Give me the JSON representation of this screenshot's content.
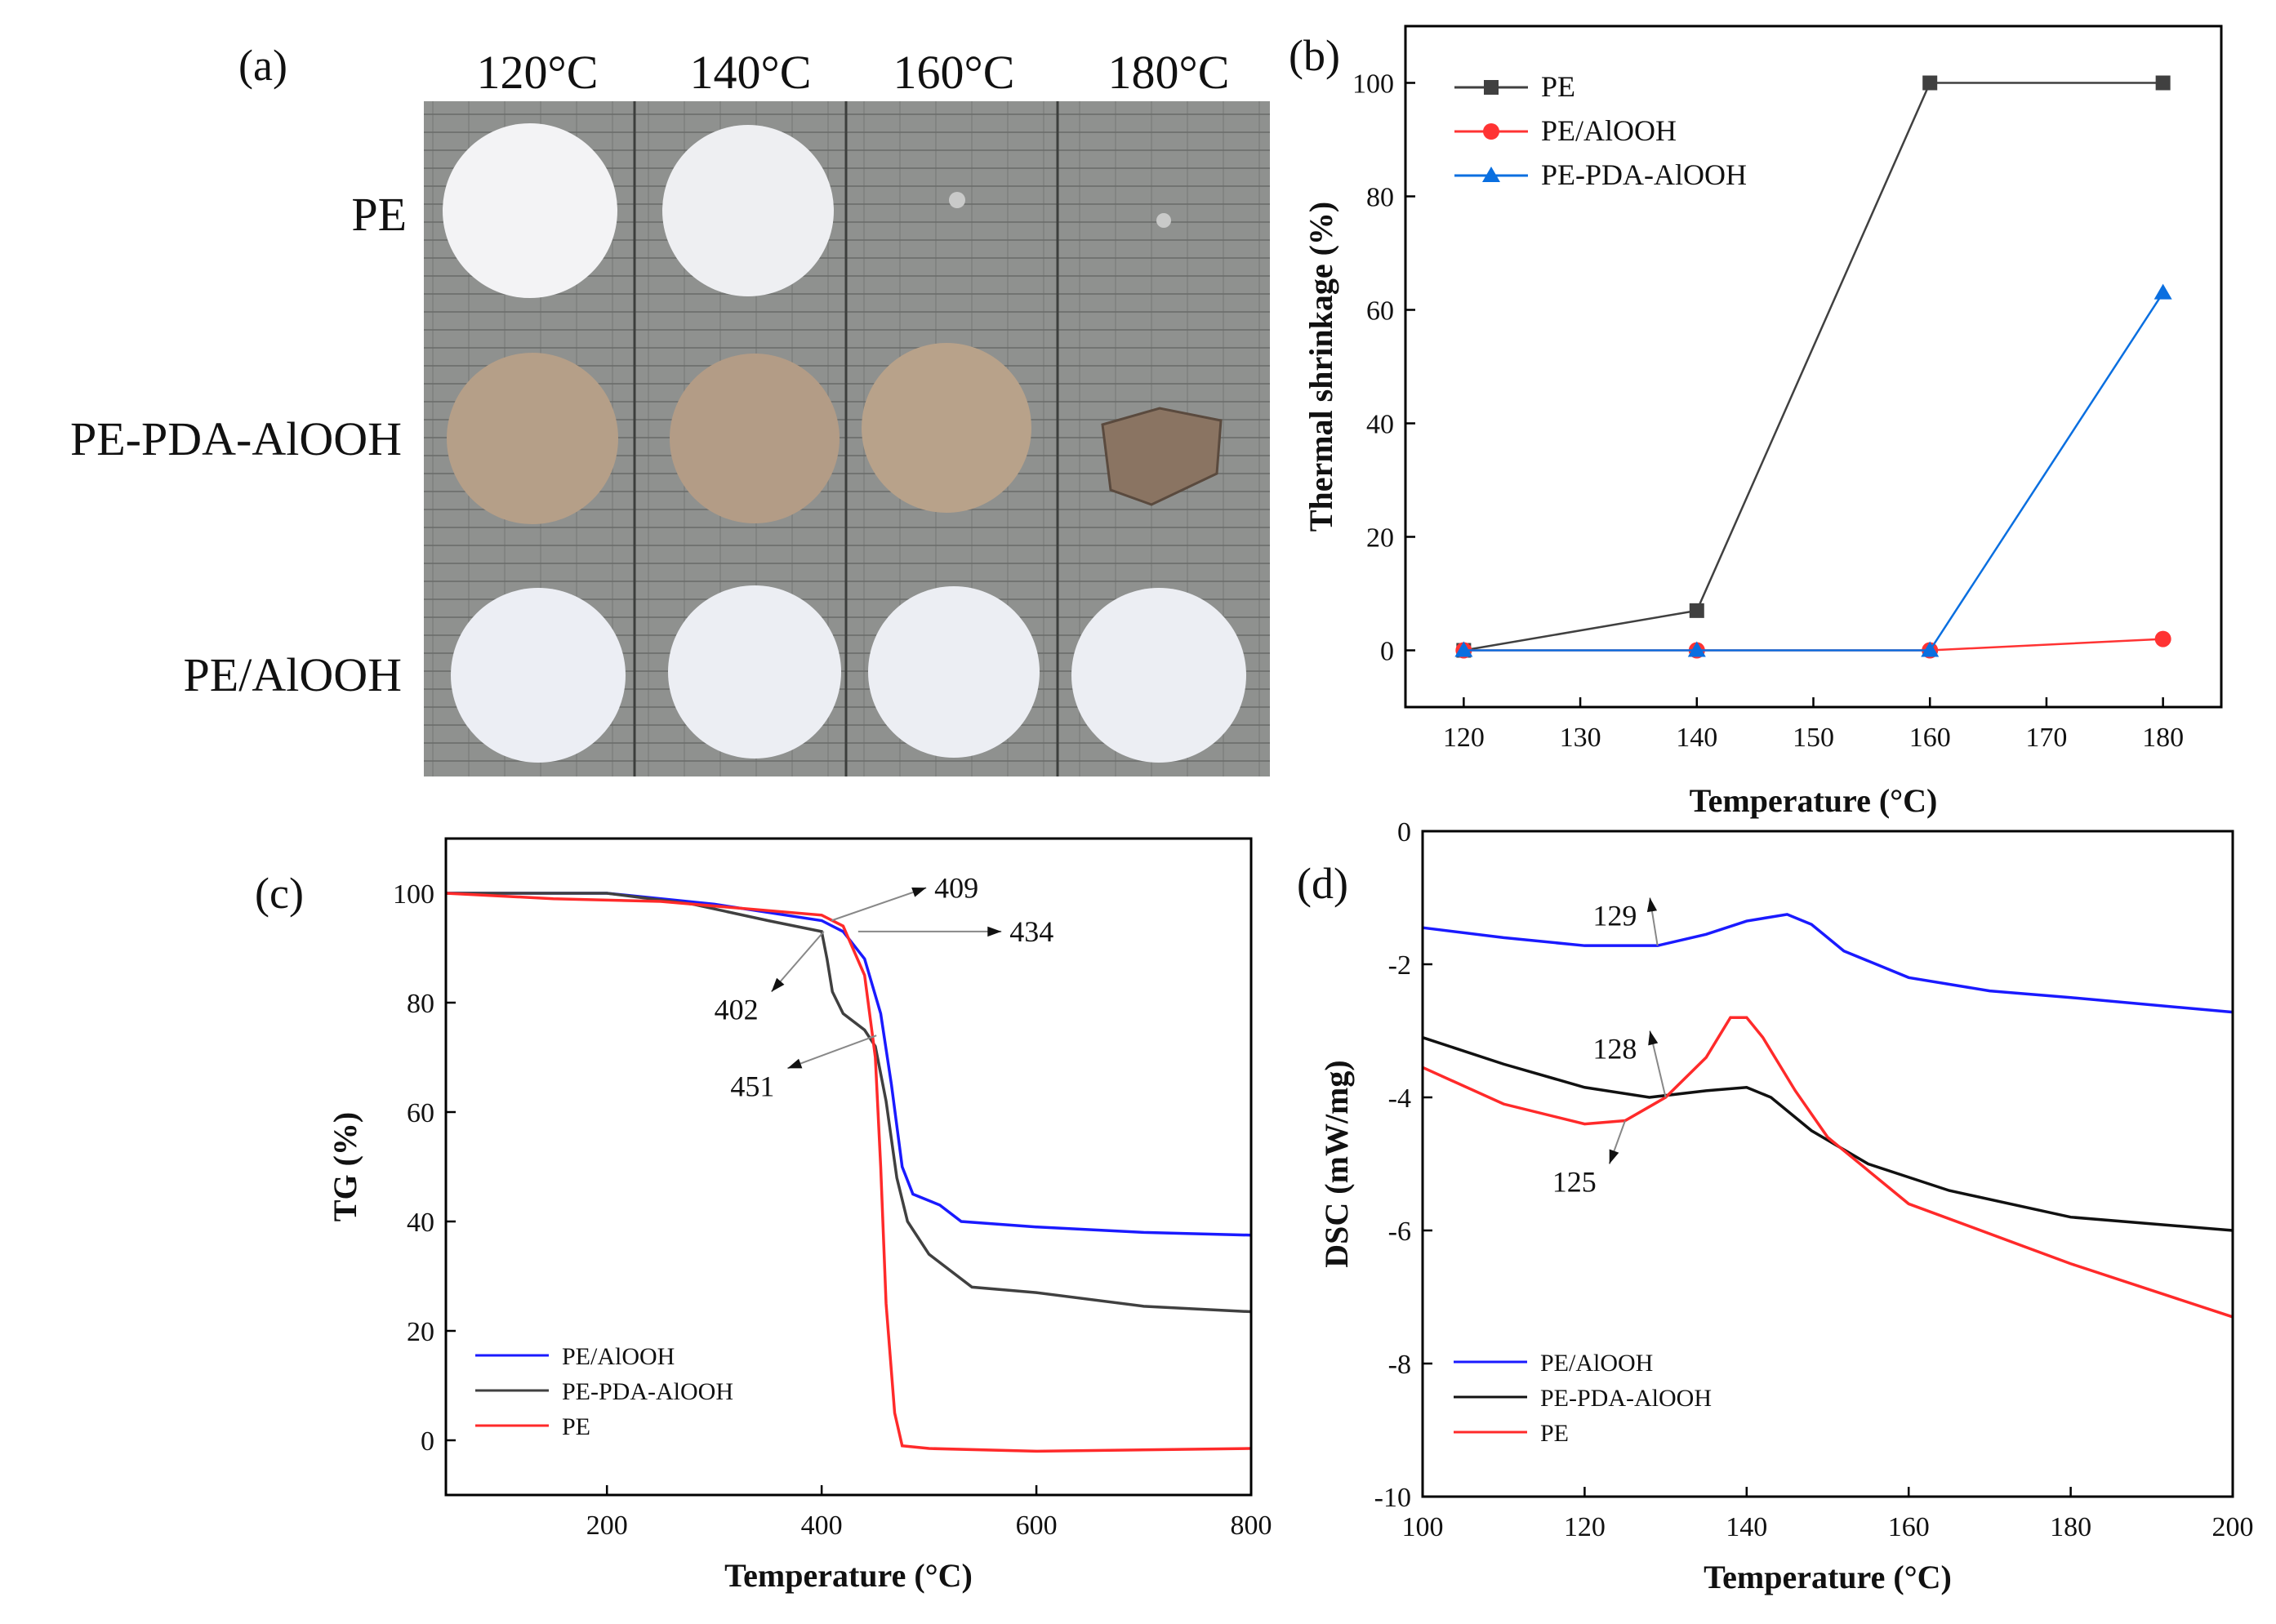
{
  "panel_labels": {
    "a": "(a)",
    "b": "(b)",
    "c": "(c)",
    "d": "(d)"
  },
  "photo_panel": {
    "column_labels": [
      "120°C",
      "140°C",
      "160°C",
      "180°C"
    ],
    "row_labels": [
      "PE",
      "PE-PDA-AlOOH",
      "PE/AlOOH"
    ]
  },
  "chart_data": [
    {
      "id": "b",
      "type": "line",
      "title": "",
      "xlabel": "Temperature (°C)",
      "ylabel": "Thermal shrinkage (%)",
      "xlim": [
        115,
        185
      ],
      "ylim": [
        -10,
        110
      ],
      "xticks": [
        120,
        130,
        140,
        150,
        160,
        170,
        180
      ],
      "yticks": [
        0,
        20,
        40,
        60,
        80,
        100
      ],
      "legend_position": "top-left",
      "series": [
        {
          "name": "PE",
          "color": "#404040",
          "marker": "square",
          "x": [
            120,
            140,
            160,
            180
          ],
          "y": [
            0,
            7,
            100,
            100
          ]
        },
        {
          "name": "PE/AlOOH",
          "color": "#ff3333",
          "marker": "circle",
          "x": [
            120,
            140,
            160,
            180
          ],
          "y": [
            0,
            0,
            0,
            2
          ]
        },
        {
          "name": "PE-PDA-AlOOH",
          "color": "#0a6fe0",
          "marker": "triangle",
          "x": [
            120,
            140,
            160,
            180
          ],
          "y": [
            0,
            0,
            0,
            63
          ]
        }
      ]
    },
    {
      "id": "c",
      "type": "line",
      "title": "",
      "xlabel": "Temperature (°C)",
      "ylabel": "TG (%)",
      "xlim": [
        50,
        800
      ],
      "ylim": [
        -10,
        110
      ],
      "xticks": [
        200,
        400,
        600,
        800
      ],
      "yticks": [
        0,
        20,
        40,
        60,
        80,
        100
      ],
      "legend_position": "bottom-left",
      "series": [
        {
          "name": "PE/AlOOH",
          "color": "#1a1aff",
          "x": [
            50,
            200,
            300,
            400,
            420,
            440,
            455,
            465,
            475,
            485,
            510,
            530,
            600,
            700,
            800
          ],
          "y": [
            100,
            100,
            98,
            95,
            93,
            88,
            78,
            65,
            50,
            45,
            43,
            40,
            39,
            38,
            37.5
          ]
        },
        {
          "name": "PE-PDA-AlOOH",
          "color": "#404040",
          "x": [
            50,
            200,
            280,
            350,
            400,
            405,
            410,
            420,
            440,
            450,
            460,
            470,
            480,
            500,
            540,
            600,
            700,
            800
          ],
          "y": [
            100,
            100,
            98,
            95,
            93,
            88,
            82,
            78,
            75,
            72,
            62,
            48,
            40,
            34,
            28,
            27,
            24.5,
            23.5
          ]
        },
        {
          "name": "PE",
          "color": "#ff2a2a",
          "x": [
            50,
            150,
            250,
            400,
            420,
            440,
            450,
            455,
            460,
            468,
            475,
            500,
            600,
            800
          ],
          "y": [
            100,
            99,
            98.5,
            96,
            94,
            85,
            70,
            50,
            25,
            5,
            -1,
            -1.5,
            -2,
            -1.5
          ]
        }
      ],
      "annotations": [
        {
          "text": "409",
          "x": 409,
          "y": 95,
          "tx": 505,
          "ty": 101
        },
        {
          "text": "434",
          "x": 434,
          "y": 93,
          "tx": 575,
          "ty": 93
        },
        {
          "text": "402",
          "x": 402,
          "y": 93,
          "tx": 300,
          "ty": 82
        },
        {
          "text": "451",
          "x": 451,
          "y": 74,
          "tx": 315,
          "ty": 68
        }
      ]
    },
    {
      "id": "d",
      "type": "line",
      "title": "",
      "xlabel": "Temperature (°C)",
      "ylabel": "DSC (mW/mg)",
      "xlim": [
        100,
        200
      ],
      "ylim": [
        -10,
        0
      ],
      "xticks": [
        100,
        120,
        140,
        160,
        180,
        200
      ],
      "yticks": [
        0,
        -2,
        -4,
        -6,
        -8,
        -10
      ],
      "legend_position": "bottom-left",
      "series": [
        {
          "name": "PE/AlOOH",
          "color": "#1a1aff",
          "x": [
            100,
            110,
            120,
            129,
            135,
            140,
            145,
            148,
            152,
            160,
            170,
            180,
            200
          ],
          "y": [
            -1.45,
            -1.6,
            -1.72,
            -1.72,
            -1.55,
            -1.35,
            -1.25,
            -1.4,
            -1.8,
            -2.2,
            -2.4,
            -2.5,
            -2.72
          ]
        },
        {
          "name": "PE-PDA-AlOOH",
          "color": "#111111",
          "x": [
            100,
            110,
            120,
            128,
            135,
            140,
            143,
            148,
            155,
            165,
            180,
            200
          ],
          "y": [
            -3.1,
            -3.5,
            -3.85,
            -4.0,
            -3.9,
            -3.85,
            -4.0,
            -4.5,
            -5.0,
            -5.4,
            -5.8,
            -6.0
          ]
        },
        {
          "name": "PE",
          "color": "#ff2a2a",
          "x": [
            100,
            110,
            120,
            125,
            130,
            135,
            138,
            140,
            142,
            146,
            150,
            160,
            180,
            200
          ],
          "y": [
            -3.55,
            -4.1,
            -4.4,
            -4.35,
            -4.0,
            -3.4,
            -2.8,
            -2.8,
            -3.1,
            -3.9,
            -4.6,
            -5.6,
            -6.5,
            -7.3
          ]
        }
      ],
      "annotations": [
        {
          "text": "129",
          "x": 129,
          "y": -1.72,
          "tx": 121,
          "ty": -1.0
        },
        {
          "text": "128",
          "x": 130,
          "y": -4.0,
          "tx": 121,
          "ty": -3.0
        },
        {
          "text": "125",
          "x": 125,
          "y": -4.35,
          "tx": 116,
          "ty": -5.0
        }
      ]
    }
  ]
}
